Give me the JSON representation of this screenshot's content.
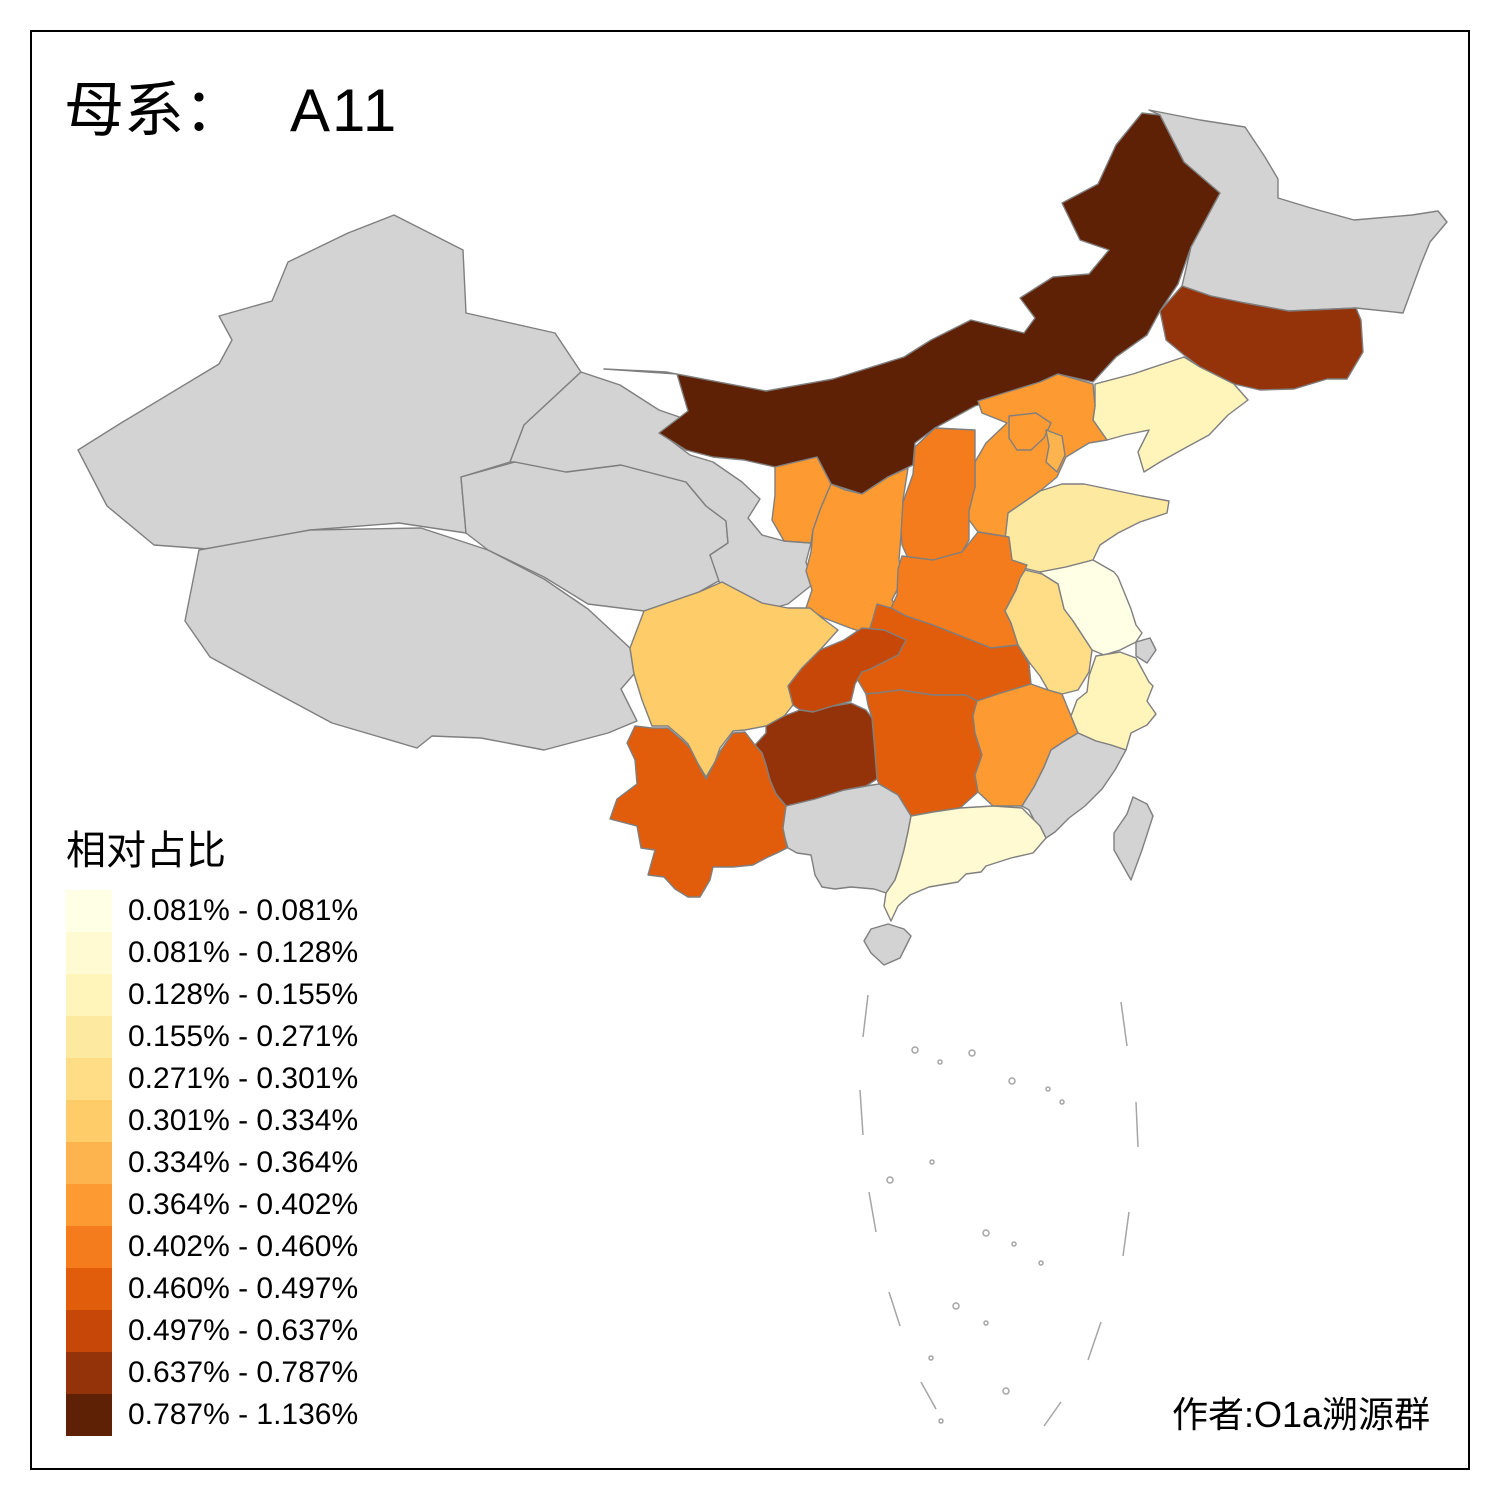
{
  "title": {
    "label": "母系：",
    "value": "A11"
  },
  "legend": {
    "title": "相对占比",
    "bins": [
      {
        "label": "0.081% - 0.081%",
        "color": "#FFFFE5"
      },
      {
        "label": "0.081% - 0.128%",
        "color": "#FFFAD1"
      },
      {
        "label": "0.128% - 0.155%",
        "color": "#FFF5BB"
      },
      {
        "label": "0.155% - 0.271%",
        "color": "#FEE9A1"
      },
      {
        "label": "0.271% - 0.301%",
        "color": "#FEDD86"
      },
      {
        "label": "0.301% - 0.334%",
        "color": "#FECC68"
      },
      {
        "label": "0.334% - 0.364%",
        "color": "#FEB44E"
      },
      {
        "label": "0.364% - 0.402%",
        "color": "#FD9A32"
      },
      {
        "label": "0.402% - 0.460%",
        "color": "#F57C1D"
      },
      {
        "label": "0.460% - 0.497%",
        "color": "#E25D0B"
      },
      {
        "label": "0.497% - 0.637%",
        "color": "#C64708"
      },
      {
        "label": "0.637% - 0.787%",
        "color": "#94330A"
      },
      {
        "label": "0.787% - 1.136%",
        "color": "#5E2105"
      }
    ]
  },
  "credit": "作者:O1a溯源群",
  "map": {
    "type": "choropleth",
    "region": "China provinces",
    "value_label": "相对占比",
    "background": "#FFFFFF",
    "border_color": "#7F7F7F",
    "no_data_color": "#D3D3D3",
    "provinces": [
      {
        "name": "xinjiang",
        "fill": "#D3D3D3",
        "bin": null
      },
      {
        "name": "tibet",
        "fill": "#D3D3D3",
        "bin": null
      },
      {
        "name": "qinghai",
        "fill": "#D3D3D3",
        "bin": null
      },
      {
        "name": "gansu",
        "fill": "#D3D3D3",
        "bin": null
      },
      {
        "name": "inner-mongolia",
        "fill": "#5E2105",
        "bin": "0.787% - 1.136%"
      },
      {
        "name": "ningxia",
        "fill": "#FD9A32",
        "bin": "0.364% - 0.402%"
      },
      {
        "name": "heilongjiang",
        "fill": "#D3D3D3",
        "bin": null
      },
      {
        "name": "jilin",
        "fill": "#94330A",
        "bin": "0.637% - 0.787%"
      },
      {
        "name": "liaoning",
        "fill": "#FFF5BB",
        "bin": "0.128% - 0.155%"
      },
      {
        "name": "hebei",
        "fill": "#FD9A32",
        "bin": "0.364% - 0.402%"
      },
      {
        "name": "shanxi",
        "fill": "#F57C1D",
        "bin": "0.402% - 0.460%"
      },
      {
        "name": "shaanxi",
        "fill": "#FD9A32",
        "bin": "0.364% - 0.402%"
      },
      {
        "name": "shandong",
        "fill": "#FEE9A1",
        "bin": "0.155% - 0.271%"
      },
      {
        "name": "henan",
        "fill": "#F57C1D",
        "bin": "0.402% - 0.460%"
      },
      {
        "name": "jiangsu",
        "fill": "#FFFFE5",
        "bin": "0.081% - 0.081%"
      },
      {
        "name": "anhui",
        "fill": "#FEDD86",
        "bin": "0.271% - 0.301%"
      },
      {
        "name": "hubei",
        "fill": "#E25D0B",
        "bin": "0.460% - 0.497%"
      },
      {
        "name": "sichuan",
        "fill": "#FECC68",
        "bin": "0.301% - 0.334%"
      },
      {
        "name": "chongqing",
        "fill": "#C64708",
        "bin": "0.497% - 0.637%"
      },
      {
        "name": "hunan",
        "fill": "#E25D0B",
        "bin": "0.460% - 0.497%"
      },
      {
        "name": "jiangxi",
        "fill": "#FD9A32",
        "bin": "0.364% - 0.402%"
      },
      {
        "name": "zhejiang",
        "fill": "#FFF5BB",
        "bin": "0.128% - 0.155%"
      },
      {
        "name": "shanghai",
        "fill": "#D3D3D3",
        "bin": null
      },
      {
        "name": "fujian",
        "fill": "#D3D3D3",
        "bin": null
      },
      {
        "name": "guangxi",
        "fill": "#D3D3D3",
        "bin": null
      },
      {
        "name": "guangdong",
        "fill": "#FFFAD1",
        "bin": "0.081% - 0.128%"
      },
      {
        "name": "guizhou",
        "fill": "#94330A",
        "bin": "0.637% - 0.787%"
      },
      {
        "name": "yunnan",
        "fill": "#E25D0B",
        "bin": "0.460% - 0.497%"
      },
      {
        "name": "hainan",
        "fill": "#D3D3D3",
        "bin": null
      },
      {
        "name": "taiwan",
        "fill": "#D3D3D3",
        "bin": null
      },
      {
        "name": "beijing",
        "fill": "#FD9A32",
        "bin": "0.364% - 0.402%"
      },
      {
        "name": "tianjin",
        "fill": "#FEB44E",
        "bin": "0.334% - 0.364%"
      }
    ]
  }
}
